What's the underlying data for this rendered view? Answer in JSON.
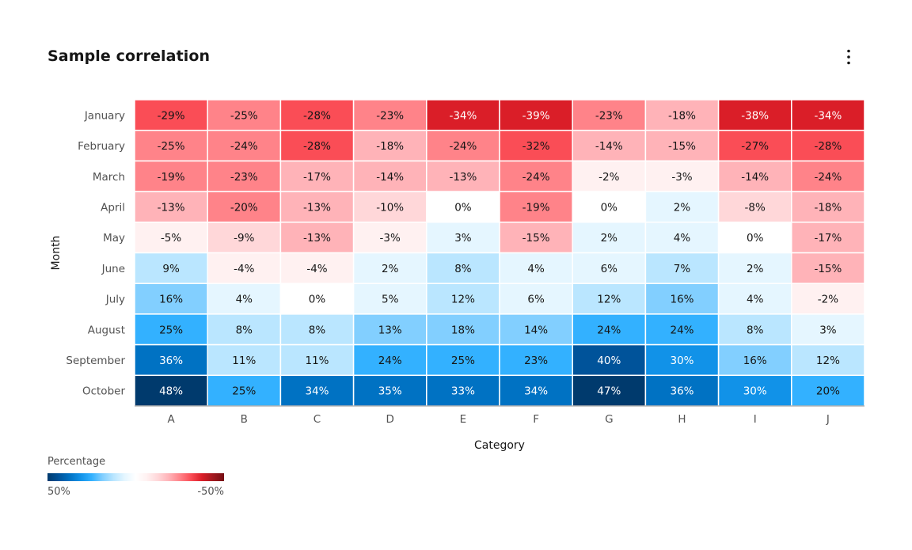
{
  "title": "Sample correlation",
  "overflow_icon": "overflow-menu-vertical-icon",
  "chart_data": {
    "type": "heatmap",
    "title": "Sample correlation",
    "xlabel": "Category",
    "ylabel": "Month",
    "categories": [
      "A",
      "B",
      "C",
      "D",
      "E",
      "F",
      "G",
      "H",
      "I",
      "J"
    ],
    "rows": [
      "January",
      "February",
      "March",
      "April",
      "May",
      "June",
      "July",
      "August",
      "September",
      "October"
    ],
    "values": [
      [
        -29,
        -25,
        -28,
        -23,
        -34,
        -39,
        -23,
        -18,
        -38,
        -34
      ],
      [
        -25,
        -24,
        -28,
        -18,
        -24,
        -32,
        -14,
        -15,
        -27,
        -28
      ],
      [
        -19,
        -23,
        -17,
        -14,
        -13,
        -24,
        -2,
        -3,
        -14,
        -24
      ],
      [
        -13,
        -20,
        -13,
        -10,
        0,
        -19,
        0,
        2,
        -8,
        -18
      ],
      [
        -5,
        -9,
        -13,
        -3,
        3,
        -15,
        2,
        4,
        0,
        -17
      ],
      [
        9,
        -4,
        -4,
        2,
        8,
        4,
        6,
        7,
        2,
        -15
      ],
      [
        16,
        4,
        0,
        5,
        12,
        6,
        12,
        16,
        4,
        -2
      ],
      [
        25,
        8,
        8,
        13,
        18,
        14,
        24,
        24,
        8,
        3
      ],
      [
        36,
        11,
        11,
        24,
        25,
        23,
        40,
        30,
        16,
        12
      ],
      [
        48,
        25,
        34,
        35,
        33,
        34,
        47,
        36,
        30,
        20
      ]
    ],
    "value_suffix": "%",
    "color_domain": [
      50,
      -50
    ],
    "legend": {
      "title": "Percentage",
      "min_label": "50%",
      "max_label": "-50%",
      "position": "bottom-left"
    },
    "colors": {
      "positive_scale": [
        "#ffffff",
        "#e5f6ff",
        "#bae6ff",
        "#82cfff",
        "#33b1ff",
        "#1192e8",
        "#0072c3",
        "#00539a",
        "#003a6d"
      ],
      "negative_scale": [
        "#ffffff",
        "#fff1f1",
        "#ffd7d9",
        "#ffb3b8",
        "#ff8389",
        "#fa4d56",
        "#da1e28",
        "#a2191f",
        "#750e13"
      ]
    }
  }
}
